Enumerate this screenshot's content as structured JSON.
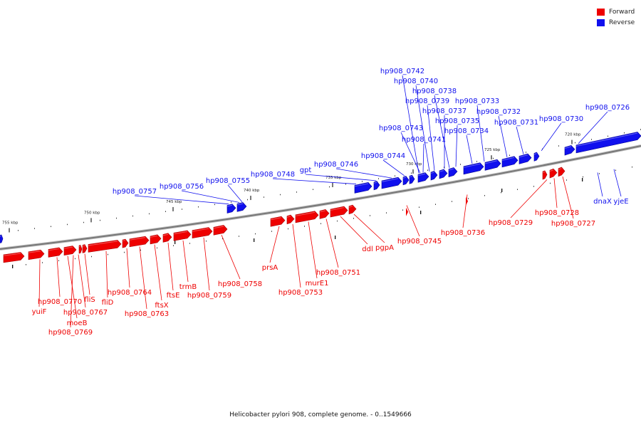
{
  "colors": {
    "forward": "#ee0000",
    "reverse": "#1010ee",
    "backbone": "#777777",
    "tick": "#222222"
  },
  "legend": [
    {
      "label": "Forward",
      "color": "#ee0000"
    },
    {
      "label": "Reverse",
      "color": "#1010ee"
    }
  ],
  "footer": "Helicobacter pylori 908, complete genome. - 0..1549666",
  "ticks": [
    "755 kbp",
    "750 kbp",
    "745 kbp",
    "740 kbp",
    "735 kbp",
    "730 kbp",
    "725 kbp",
    "720 kbp"
  ],
  "forward_labels": [
    "yuiF",
    "hp908_0770",
    "moeB",
    "hp908_0769",
    "hp908_0767",
    "fliS",
    "fliD",
    "hp908_0764",
    "hp908_0763",
    "ftsX",
    "ftsE",
    "trmB",
    "hp908_0759",
    "hp908_0758",
    "prsA",
    "hp908_0753",
    "murE1",
    "hp908_0751",
    "ddl",
    "pgpA",
    "hp908_0745",
    "hp908_0736",
    "hp908_0729",
    "hp908_0728",
    "hp908_0727"
  ],
  "reverse_labels": [
    "hp908_0757",
    "hp908_0756",
    "hp908_0755",
    "hp908_0748",
    "gpt",
    "hp908_0746",
    "hp908_0744",
    "hp908_0743",
    "hp908_0742",
    "hp908_0740",
    "hp908_0738",
    "hp908_0739",
    "hp908_0741",
    "hp908_0737",
    "hp908_0735",
    "hp908_0734",
    "hp908_0733",
    "hp908_0732",
    "hp908_0731",
    "hp908_0730",
    "hp908_0726",
    "dnaX",
    "yjeE"
  ]
}
